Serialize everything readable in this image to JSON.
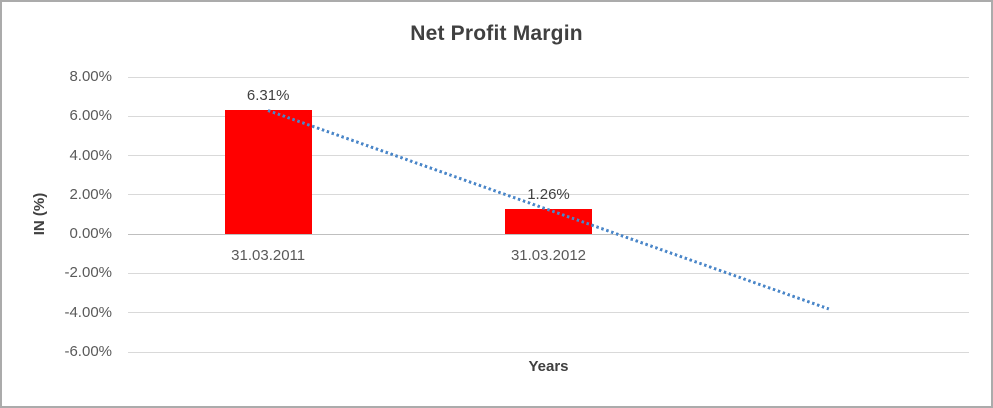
{
  "chart_data": {
    "type": "bar",
    "title": "Net Profit Margin",
    "xlabel": "Years",
    "ylabel": "IN (%)",
    "categories": [
      "31.03.2011",
      "31.03.2012"
    ],
    "values": [
      6.31,
      1.26
    ],
    "data_labels": [
      "6.31%",
      "1.26%"
    ],
    "ylim": [
      -6,
      8
    ],
    "y_tick_values": [
      8,
      6,
      4,
      2,
      0,
      -2,
      -4,
      -6
    ],
    "y_tick_labels": [
      "8.00%",
      "6.00%",
      "4.00%",
      "2.00%",
      "0.00%",
      "-2.00%",
      "-4.00%",
      "-6.00%"
    ],
    "category_slots": 3,
    "grid": "horizontal",
    "legend": "none",
    "bar_color": "#FF0000",
    "trendline": {
      "style": "dotted",
      "color": "#4A86C8",
      "start_category_index": 0,
      "start_value": 6.31,
      "end_category_index": 2,
      "end_value": -3.79
    },
    "colors": {
      "title": "#404040",
      "axis_text": "#595959",
      "data_label": "#404040",
      "gridline": "#D9D9D9",
      "zero_line": "#BFBFBF",
      "background": "#FFFFFF",
      "frame_border": "#ABABAB"
    }
  }
}
